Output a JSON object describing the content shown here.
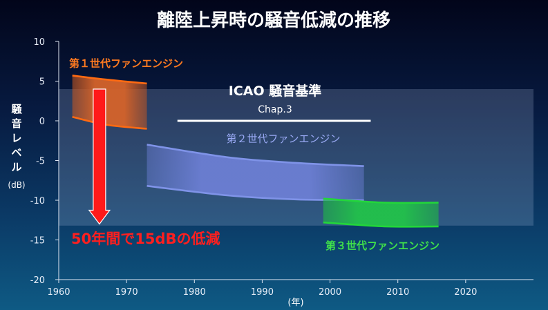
{
  "chart_data": {
    "type": "area",
    "title": "離陸上昇時の騒音低減の推移",
    "ylabel_chars": [
      "騒",
      "音",
      "レ",
      "ベ",
      "ル"
    ],
    "ylabel_unit": "(dB)",
    "xlabel": "(年)",
    "xlim": [
      1960,
      2030
    ],
    "ylim": [
      -20,
      10
    ],
    "xticks": [
      1960,
      1970,
      1980,
      1990,
      2000,
      2010,
      2020
    ],
    "yticks": [
      10,
      5,
      0,
      -5,
      -10,
      -15,
      -20
    ],
    "series": [
      {
        "name": "第１世代ファンエンジン",
        "color": "#ff6a12",
        "upper": [
          [
            1962,
            5.7
          ],
          [
            1967,
            5.2
          ],
          [
            1973,
            4.7
          ]
        ],
        "lower": [
          [
            1962,
            0.5
          ],
          [
            1967,
            -0.5
          ],
          [
            1973,
            -1.0
          ]
        ]
      },
      {
        "name": "第２世代ファンエンジン",
        "color": "#7f93e8",
        "upper": [
          [
            1973,
            -3.0
          ],
          [
            1985,
            -4.6
          ],
          [
            1995,
            -5.3
          ],
          [
            2005,
            -5.7
          ]
        ],
        "lower": [
          [
            1973,
            -8.2
          ],
          [
            1985,
            -9.4
          ],
          [
            1995,
            -9.9
          ],
          [
            2005,
            -10.0
          ]
        ]
      },
      {
        "name": "第３世代ファンエンジン",
        "color": "#22d63a",
        "upper": [
          [
            1999,
            -9.8
          ],
          [
            2008,
            -10.3
          ],
          [
            2016,
            -10.3
          ]
        ],
        "lower": [
          [
            1999,
            -12.8
          ],
          [
            2008,
            -13.3
          ],
          [
            2016,
            -13.3
          ]
        ]
      }
    ],
    "reference_band": {
      "label": "ICAO 騒音基準",
      "sublabel": "Chap.3",
      "y_top": 4.0,
      "y_bottom": -13.2,
      "line_y": 0,
      "line_x": [
        1977.5,
        2006
      ]
    },
    "annotation": {
      "text": "50年間で15dBの低減",
      "arrow_x": 1966,
      "arrow_from": 4.0,
      "arrow_to": -13.0
    },
    "grid": false
  }
}
